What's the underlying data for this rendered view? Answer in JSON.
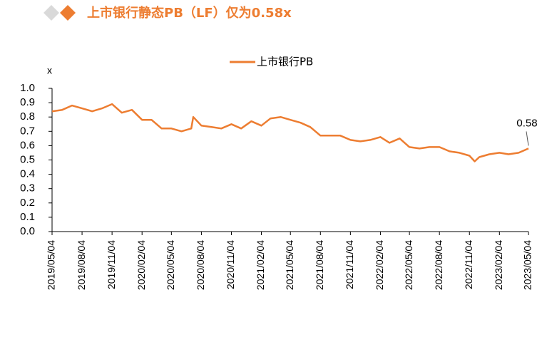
{
  "chart_data": {
    "type": "line",
    "title": "上市银行静态PB（LF）仅为0.58x",
    "y_label": "x",
    "x": [
      "2019/05/04",
      "2019/06/04",
      "2019/07/04",
      "2019/08/04",
      "2019/09/04",
      "2019/10/04",
      "2019/11/04",
      "2019/12/04",
      "2020/01/04",
      "2020/02/04",
      "2020/03/04",
      "2020/04/04",
      "2020/05/04",
      "2020/06/04",
      "2020/07/04",
      "2020/07/10",
      "2020/08/04",
      "2020/09/04",
      "2020/10/04",
      "2020/11/04",
      "2020/12/04",
      "2021/01/04",
      "2021/02/04",
      "2021/03/04",
      "2021/04/04",
      "2021/05/04",
      "2021/06/04",
      "2021/07/04",
      "2021/08/04",
      "2021/09/04",
      "2021/10/04",
      "2021/11/04",
      "2021/12/04",
      "2022/01/04",
      "2022/02/04",
      "2022/03/04",
      "2022/04/04",
      "2022/05/04",
      "2022/06/04",
      "2022/07/04",
      "2022/08/04",
      "2022/09/04",
      "2022/10/04",
      "2022/11/04",
      "2022/11/20",
      "2022/12/04",
      "2023/01/04",
      "2023/02/04",
      "2023/03/04",
      "2023/04/04",
      "2023/05/04"
    ],
    "series": [
      {
        "name": "上市银行PB",
        "color": "#ED7D31",
        "values": [
          0.84,
          0.85,
          0.88,
          0.86,
          0.84,
          0.86,
          0.89,
          0.83,
          0.85,
          0.78,
          0.78,
          0.72,
          0.72,
          0.7,
          0.72,
          0.8,
          0.74,
          0.73,
          0.72,
          0.75,
          0.72,
          0.77,
          0.74,
          0.79,
          0.8,
          0.78,
          0.76,
          0.73,
          0.67,
          0.67,
          0.67,
          0.64,
          0.63,
          0.64,
          0.66,
          0.62,
          0.65,
          0.59,
          0.58,
          0.59,
          0.59,
          0.56,
          0.55,
          0.53,
          0.49,
          0.52,
          0.54,
          0.55,
          0.54,
          0.55,
          0.58
        ]
      }
    ],
    "annotation": "0.58",
    "xticks": [
      "2019/05/04",
      "2019/08/04",
      "2019/11/04",
      "2020/02/04",
      "2020/05/04",
      "2020/08/04",
      "2020/11/04",
      "2021/02/04",
      "2021/05/04",
      "2021/08/04",
      "2021/11/04",
      "2022/02/04",
      "2022/05/04",
      "2022/08/04",
      "2022/11/04",
      "2023/02/04",
      "2023/05/04"
    ],
    "xlim": [
      "2019/05/04",
      "2023/05/04"
    ],
    "ylim": [
      0,
      1
    ],
    "yticks": [
      {
        "value": 0,
        "label": "0.0"
      },
      0.1,
      0.2,
      0.3,
      0.4,
      0.5,
      0.6,
      0.7,
      0.8,
      0.9,
      {
        "value": 1,
        "label": "1.0"
      }
    ],
    "legend": "top"
  }
}
